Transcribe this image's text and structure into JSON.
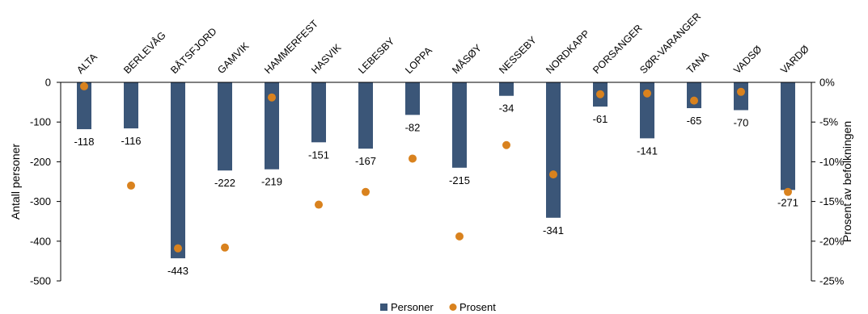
{
  "chart_data": {
    "type": "bar",
    "categories": [
      "ALTA",
      "BERLEVÅG",
      "BÅTSFJORD",
      "GAMVIK",
      "HAMMERFEST",
      "HASVIK",
      "LEBESBY",
      "LOPPA",
      "MÅSØY",
      "NESSEBY",
      "NORDKAPP",
      "PORSANGER",
      "SØR-VARANGER",
      "TANA",
      "VADSØ",
      "VARDØ"
    ],
    "series": [
      {
        "name": "Personer",
        "kind": "bar",
        "axis": "left",
        "color": "#3b5678",
        "values": [
          -118,
          -116,
          -443,
          -222,
          -219,
          -151,
          -167,
          -82,
          -215,
          -34,
          -341,
          -61,
          -141,
          -65,
          -70,
          -271
        ],
        "labels": [
          "-118",
          "-116",
          "-443",
          "-222",
          "-219",
          "-151",
          "-167",
          "-82",
          "-215",
          "-34",
          "-341",
          "-61",
          "-141",
          "-65",
          "-70",
          "-271"
        ]
      },
      {
        "name": "Prosent",
        "kind": "scatter",
        "axis": "right",
        "color": "#d9821e",
        "values": [
          -0.5,
          -13.0,
          -20.9,
          -20.8,
          -1.9,
          -15.4,
          -13.8,
          -9.6,
          -19.4,
          -7.9,
          -11.6,
          -1.5,
          -1.4,
          -2.3,
          -1.2,
          -13.8
        ]
      }
    ],
    "ylabel": "Antall personer",
    "y2label": "Prosent av befolkningen",
    "ylim": [
      -500,
      0
    ],
    "y2lim": [
      -25,
      0
    ],
    "yticks": [
      "0",
      "-100",
      "-200",
      "-300",
      "-400",
      "-500"
    ],
    "y2ticks": [
      "0%",
      "-5%",
      "-10%",
      "-15%",
      "-20%",
      "-25%"
    ],
    "legend_position": "bottom",
    "grid": false
  }
}
